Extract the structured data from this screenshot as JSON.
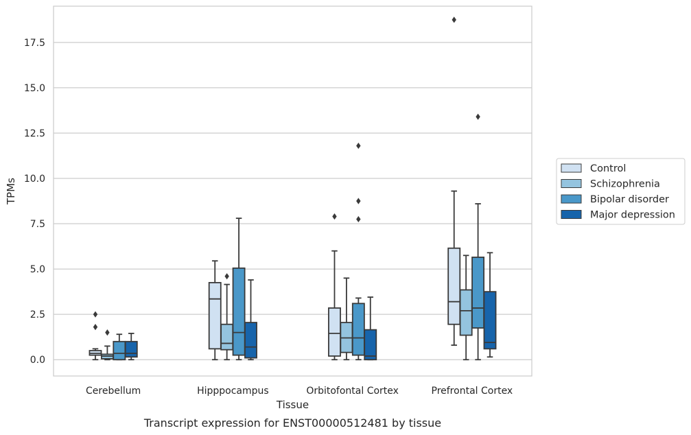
{
  "chart_data": {
    "type": "boxplot",
    "xlabel": "Tissue",
    "ylabel": "TPMs",
    "caption": "Transcript expression for ENST00000512481 by tissue",
    "ylim": [
      -0.9,
      19.5
    ],
    "yticks": [
      0.0,
      2.5,
      5.0,
      7.5,
      10.0,
      12.5,
      15.0,
      17.5
    ],
    "ytick_labels": [
      "0.0",
      "2.5",
      "5.0",
      "7.5",
      "10.0",
      "12.5",
      "15.0",
      "17.5"
    ],
    "grid": "horizontal",
    "legend_placement": "right",
    "categories": [
      "Cerebellum",
      "Hipppocampus",
      "Orbitofontal Cortex",
      "Prefrontal Cortex"
    ],
    "series": [
      {
        "name": "Control",
        "color": "#d0e1f2",
        "boxes": [
          {
            "whislo": 0.0,
            "q1": 0.25,
            "med": 0.35,
            "q3": 0.5,
            "whishi": 0.6,
            "fliers": [
              1.8,
              2.5
            ]
          },
          {
            "whislo": 0.0,
            "q1": 0.6,
            "med": 3.35,
            "q3": 4.25,
            "whishi": 5.45,
            "fliers": []
          },
          {
            "whislo": 0.0,
            "q1": 0.2,
            "med": 1.45,
            "q3": 2.85,
            "whishi": 6.0,
            "fliers": [
              7.9
            ]
          },
          {
            "whislo": 0.8,
            "q1": 1.95,
            "med": 3.2,
            "q3": 6.15,
            "whishi": 9.3,
            "fliers": [
              18.75
            ]
          }
        ]
      },
      {
        "name": "Schizophrenia",
        "color": "#94c4df",
        "boxes": [
          {
            "whislo": 0.0,
            "q1": 0.05,
            "med": 0.2,
            "q3": 0.3,
            "whishi": 0.75,
            "fliers": [
              1.5
            ]
          },
          {
            "whislo": 0.0,
            "q1": 0.55,
            "med": 0.9,
            "q3": 1.95,
            "whishi": 4.15,
            "fliers": [
              4.6
            ]
          },
          {
            "whislo": 0.0,
            "q1": 0.4,
            "med": 1.2,
            "q3": 2.05,
            "whishi": 4.5,
            "fliers": []
          },
          {
            "whislo": 0.0,
            "q1": 1.35,
            "med": 2.7,
            "q3": 3.85,
            "whishi": 5.75,
            "fliers": []
          }
        ]
      },
      {
        "name": "Bipolar disorder",
        "color": "#4a98c9",
        "boxes": [
          {
            "whislo": 0.0,
            "q1": 0.0,
            "med": 0.35,
            "q3": 1.0,
            "whishi": 1.4,
            "fliers": []
          },
          {
            "whislo": 0.0,
            "q1": 0.25,
            "med": 1.5,
            "q3": 5.05,
            "whishi": 7.8,
            "fliers": []
          },
          {
            "whislo": 0.0,
            "q1": 0.25,
            "med": 1.2,
            "q3": 3.1,
            "whishi": 3.4,
            "fliers": [
              7.75,
              8.75,
              11.8
            ]
          },
          {
            "whislo": 0.0,
            "q1": 1.75,
            "med": 2.85,
            "q3": 5.65,
            "whishi": 8.6,
            "fliers": [
              13.4
            ]
          }
        ]
      },
      {
        "name": "Major depression",
        "color": "#1764ab",
        "boxes": [
          {
            "whislo": 0.0,
            "q1": 0.15,
            "med": 0.35,
            "q3": 1.0,
            "whishi": 1.45,
            "fliers": []
          },
          {
            "whislo": 0.0,
            "q1": 0.1,
            "med": 0.7,
            "q3": 2.05,
            "whishi": 4.4,
            "fliers": []
          },
          {
            "whislo": 0.0,
            "q1": 0.0,
            "med": 0.2,
            "q3": 1.65,
            "whishi": 3.45,
            "fliers": []
          },
          {
            "whislo": 0.15,
            "q1": 0.6,
            "med": 0.95,
            "q3": 3.75,
            "whishi": 5.9,
            "fliers": []
          }
        ]
      }
    ]
  }
}
